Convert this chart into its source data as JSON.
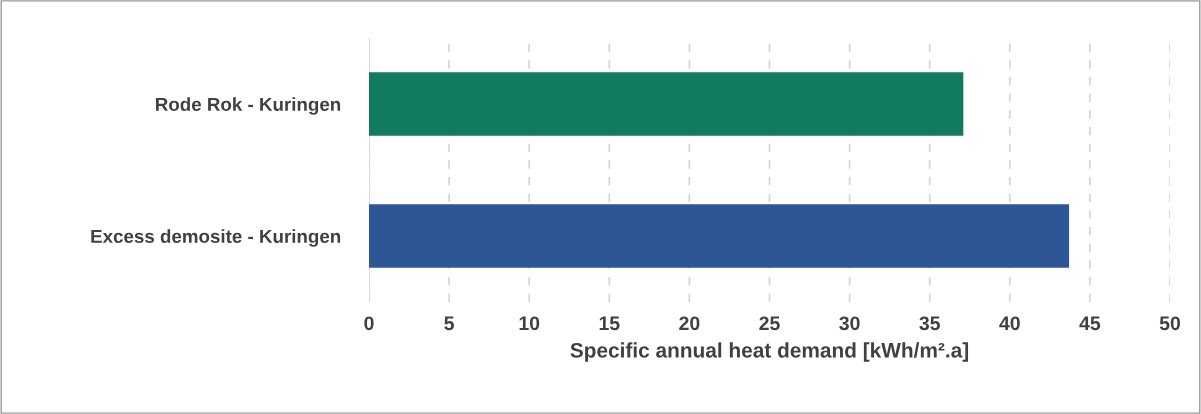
{
  "chart_data": {
    "type": "bar",
    "orientation": "horizontal",
    "xlabel": "Specific annual heat demand [kWh/m².a]",
    "categories": [
      "Rode Rok - Kuringen",
      "Excess demosite - Kuringen"
    ],
    "values": [
      37.1,
      43.7
    ],
    "colors": [
      "#127b5f",
      "#2e5595"
    ],
    "xlim": [
      0,
      50
    ],
    "xticks": [
      0,
      5,
      10,
      15,
      20,
      25,
      30,
      35,
      40,
      45,
      50
    ],
    "grid": "x"
  }
}
